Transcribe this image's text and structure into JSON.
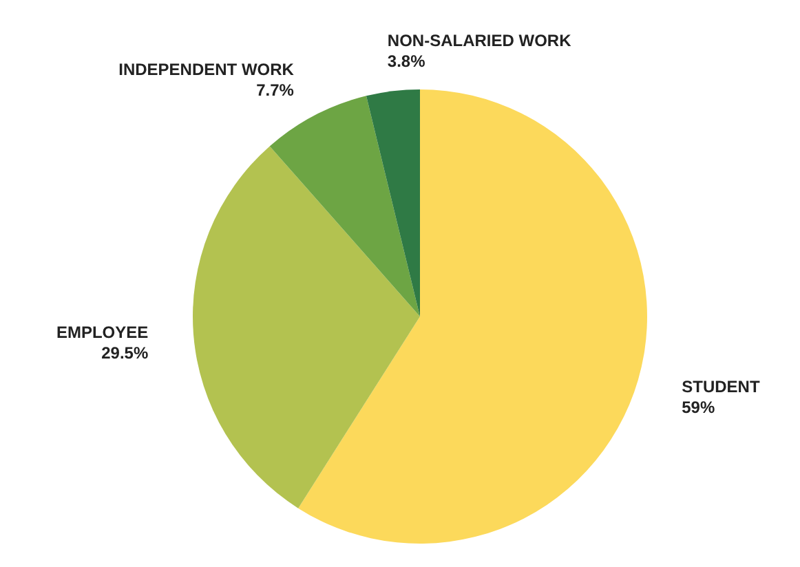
{
  "chart_data": {
    "type": "pie",
    "categories": [
      "STUDENT",
      "EMPLOYEE",
      "INDEPENDENT WORK",
      "NON-SALARIED WORK"
    ],
    "values": [
      59,
      29.5,
      7.7,
      3.8
    ],
    "colors": [
      "#fcd95b",
      "#b3c250",
      "#6da544",
      "#2f7a45"
    ],
    "value_labels": [
      "59%",
      "29.5%",
      "7.7%",
      "3.8%"
    ]
  }
}
